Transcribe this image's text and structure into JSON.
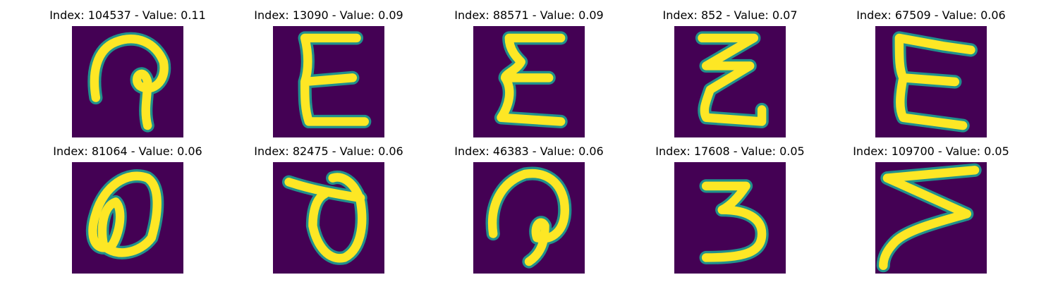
{
  "figure": {
    "background": "#440154",
    "stroke_color": "#fde725",
    "edge_color": "#21918c",
    "panels": [
      {
        "label": "Index: 104537 - Value: 0.11",
        "glyph": "loop-descender"
      },
      {
        "label": "Index: 13090 - Value: 0.09",
        "glyph": "E"
      },
      {
        "label": "Index: 88571 - Value: 0.09",
        "glyph": "E"
      },
      {
        "label": "Index: 852 - Value: 0.07",
        "glyph": "Z-stack"
      },
      {
        "label": "Index: 67509 - Value: 0.06",
        "glyph": "E"
      },
      {
        "label": "Index: 81064 - Value: 0.06",
        "glyph": "loop-oval"
      },
      {
        "label": "Index: 82475 - Value: 0.06",
        "glyph": "theta"
      },
      {
        "label": "Index: 46383 - Value: 0.06",
        "glyph": "loop-descender"
      },
      {
        "label": "Index: 17608 - Value: 0.05",
        "glyph": "3"
      },
      {
        "label": "Index: 109700 - Value: 0.05",
        "glyph": "Z-slant"
      }
    ]
  }
}
